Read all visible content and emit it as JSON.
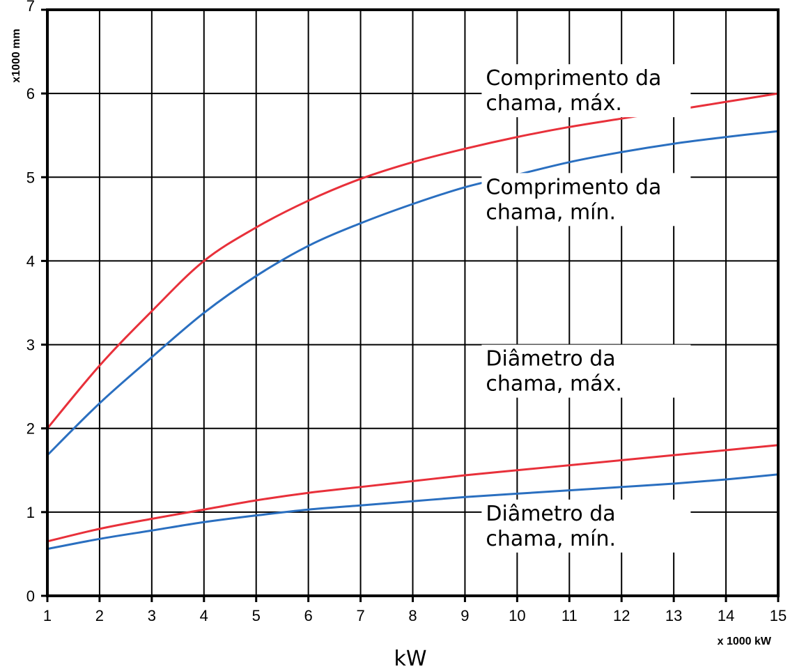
{
  "chart_data": {
    "type": "line",
    "title": "",
    "xlabel": "kW",
    "x_unit": "x 1000 kW",
    "y_unit": "x1000 mm",
    "xlim": [
      1,
      15
    ],
    "ylim": [
      0,
      7
    ],
    "x_ticks": [
      1,
      2,
      3,
      4,
      5,
      6,
      7,
      8,
      9,
      10,
      11,
      12,
      13,
      14,
      15
    ],
    "y_ticks": [
      0,
      1,
      2,
      3,
      4,
      5,
      6,
      7
    ],
    "grid": true,
    "x": [
      1,
      2,
      3,
      4,
      5,
      6,
      7,
      8,
      9,
      10,
      11,
      12,
      13,
      14,
      15
    ],
    "series": [
      {
        "color": "#e8303a",
        "values": [
          2.0,
          2.75,
          3.4,
          4.0,
          4.4,
          4.72,
          4.98,
          5.18,
          5.34,
          5.48,
          5.6,
          5.7,
          5.8,
          5.9,
          6.0
        ]
      },
      {
        "color": "#2a6fc0",
        "values": [
          1.68,
          2.3,
          2.85,
          3.38,
          3.82,
          4.18,
          4.45,
          4.68,
          4.88,
          5.03,
          5.18,
          5.3,
          5.4,
          5.48,
          5.55
        ]
      },
      {
        "color": "#e8303a",
        "values": [
          0.65,
          0.8,
          0.92,
          1.03,
          1.14,
          1.23,
          1.3,
          1.37,
          1.44,
          1.5,
          1.56,
          1.62,
          1.68,
          1.74,
          1.8
        ]
      },
      {
        "color": "#2a6fc0",
        "values": [
          0.56,
          0.68,
          0.78,
          0.88,
          0.96,
          1.03,
          1.08,
          1.13,
          1.18,
          1.22,
          1.26,
          1.3,
          1.34,
          1.39,
          1.45
        ]
      }
    ],
    "annotations": [
      {
        "lines": [
          "Comprimento da",
          "chama, máx."
        ],
        "anchor_x": 9.4,
        "anchor_y": 6.0
      },
      {
        "lines": [
          "Comprimento da",
          "chama, mín."
        ],
        "anchor_x": 9.4,
        "anchor_y": 4.7
      },
      {
        "lines": [
          "Diâmetro da",
          "chama, máx."
        ],
        "anchor_x": 9.4,
        "anchor_y": 2.65
      },
      {
        "lines": [
          "Diâmetro da",
          "chama, mín."
        ],
        "anchor_x": 9.4,
        "anchor_y": 0.8
      }
    ]
  }
}
